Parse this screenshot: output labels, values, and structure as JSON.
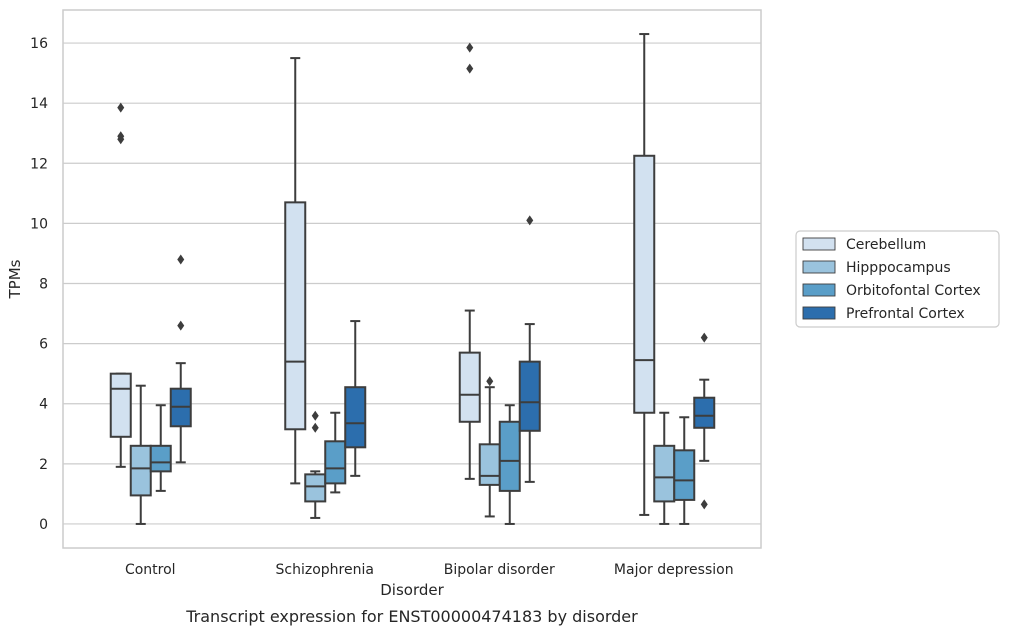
{
  "chart_data": {
    "type": "box",
    "caption": "Transcript expression for ENST00000474183 by disorder",
    "xlabel": "Disorder",
    "ylabel": "TPMs",
    "ylim": [
      -0.8,
      17.1
    ],
    "yticks": [
      0,
      2,
      4,
      6,
      8,
      10,
      12,
      14,
      16
    ],
    "grid": "horizontal",
    "legend_position": "right",
    "categories": [
      "Control",
      "Schizophrenia",
      "Bipolar disorder",
      "Major depression"
    ],
    "series": [
      {
        "name": "Cerebellum",
        "color": "#d2e1f0",
        "boxes": [
          {
            "whisker_low": 1.9,
            "q1": 2.9,
            "median": 4.5,
            "q3": 5.0,
            "whisker_high": 5.0,
            "outliers": [
              12.8,
              12.9,
              13.85
            ]
          },
          {
            "whisker_low": 1.35,
            "q1": 3.15,
            "median": 5.4,
            "q3": 10.7,
            "whisker_high": 15.5,
            "outliers": []
          },
          {
            "whisker_low": 1.5,
            "q1": 3.4,
            "median": 4.3,
            "q3": 5.7,
            "whisker_high": 7.1,
            "outliers": [
              15.15,
              15.85
            ]
          },
          {
            "whisker_low": 0.3,
            "q1": 3.7,
            "median": 5.45,
            "q3": 12.25,
            "whisker_high": 16.3,
            "outliers": []
          }
        ]
      },
      {
        "name": "Hipppocampus",
        "color": "#9ac3dd",
        "boxes": [
          {
            "whisker_low": 0.0,
            "q1": 0.95,
            "median": 1.85,
            "q3": 2.6,
            "whisker_high": 4.6,
            "outliers": []
          },
          {
            "whisker_low": 0.2,
            "q1": 0.75,
            "median": 1.25,
            "q3": 1.65,
            "whisker_high": 1.75,
            "outliers": [
              3.2,
              3.6
            ]
          },
          {
            "whisker_low": 0.25,
            "q1": 1.3,
            "median": 1.6,
            "q3": 2.65,
            "whisker_high": 4.55,
            "outliers": [
              4.75
            ]
          },
          {
            "whisker_low": 0.0,
            "q1": 0.75,
            "median": 1.55,
            "q3": 2.6,
            "whisker_high": 3.7,
            "outliers": []
          }
        ]
      },
      {
        "name": "Orbitofontal Cortex",
        "color": "#5a9ec8",
        "boxes": [
          {
            "whisker_low": 1.1,
            "q1": 1.75,
            "median": 2.05,
            "q3": 2.6,
            "whisker_high": 3.95,
            "outliers": []
          },
          {
            "whisker_low": 1.05,
            "q1": 1.35,
            "median": 1.85,
            "q3": 2.75,
            "whisker_high": 3.7,
            "outliers": []
          },
          {
            "whisker_low": 0.0,
            "q1": 1.1,
            "median": 2.1,
            "q3": 3.4,
            "whisker_high": 3.95,
            "outliers": []
          },
          {
            "whisker_low": 0.0,
            "q1": 0.8,
            "median": 1.45,
            "q3": 2.45,
            "whisker_high": 3.55,
            "outliers": []
          }
        ]
      },
      {
        "name": "Prefrontal Cortex",
        "color": "#2c6ead",
        "boxes": [
          {
            "whisker_low": 2.05,
            "q1": 3.25,
            "median": 3.9,
            "q3": 4.5,
            "whisker_high": 5.35,
            "outliers": [
              6.6,
              8.8
            ]
          },
          {
            "whisker_low": 1.6,
            "q1": 2.55,
            "median": 3.35,
            "q3": 4.55,
            "whisker_high": 6.75,
            "outliers": []
          },
          {
            "whisker_low": 1.4,
            "q1": 3.1,
            "median": 4.05,
            "q3": 5.4,
            "whisker_high": 6.65,
            "outliers": [
              10.1
            ]
          },
          {
            "whisker_low": 2.1,
            "q1": 3.2,
            "median": 3.6,
            "q3": 4.2,
            "whisker_high": 4.8,
            "outliers": [
              0.65,
              6.2
            ]
          }
        ]
      }
    ]
  }
}
